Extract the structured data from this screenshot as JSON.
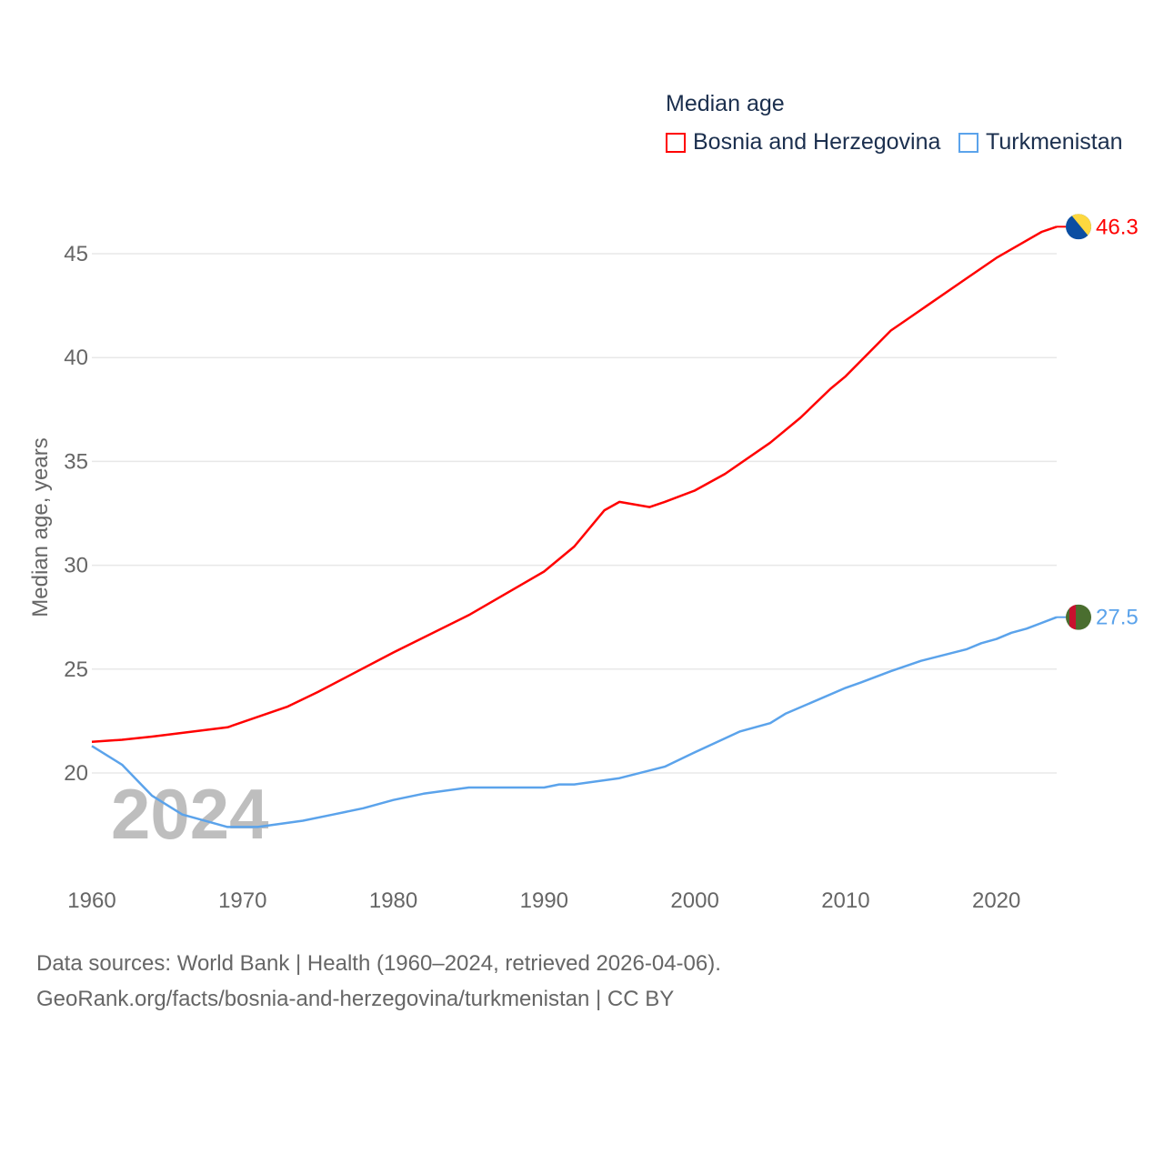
{
  "chart_data": {
    "type": "line",
    "title": "Median age",
    "xlabel": "",
    "ylabel": "Median age, years",
    "xlim": [
      1960,
      2024
    ],
    "ylim": [
      17,
      46.3
    ],
    "x_ticks": [
      "1960",
      "1970",
      "1980",
      "1990",
      "2000",
      "2010",
      "2020"
    ],
    "y_ticks": [
      "20",
      "25",
      "30",
      "35",
      "40",
      "45"
    ],
    "grid": true,
    "legend_placement": "top-right",
    "year_watermark": "2024",
    "series": [
      {
        "name": "Bosnia and Herzegovina",
        "color": "#ff0000",
        "end_label": "46.3",
        "flag": "bosnia-flag",
        "x": [
          1960,
          1962,
          1964,
          1969,
          1973,
          1975,
          1980,
          1985,
          1990,
          1992,
          1994,
          1995,
          1997,
          1998,
          2000,
          2002,
          2005,
          2007,
          2009,
          2010,
          2013,
          2014,
          2018,
          2020,
          2023,
          2024
        ],
        "y": [
          21.5,
          21.6,
          21.75,
          22.2,
          23.2,
          23.9,
          25.8,
          27.6,
          29.7,
          30.9,
          32.65,
          33.05,
          32.8,
          33.05,
          33.6,
          34.4,
          35.9,
          37.1,
          38.5,
          39.1,
          41.3,
          41.8,
          43.8,
          44.8,
          46.05,
          46.3
        ]
      },
      {
        "name": "Turkmenistan",
        "color": "#5ba3eb",
        "end_label": "27.5",
        "flag": "turkmenistan-flag",
        "x": [
          1960,
          1962,
          1964,
          1966,
          1968,
          1969,
          1971,
          1974,
          1976,
          1978,
          1980,
          1982,
          1985,
          1990,
          1991,
          1992,
          1995,
          1998,
          2000,
          2003,
          2005,
          2006,
          2010,
          2011,
          2013,
          2015,
          2018,
          2019,
          2020,
          2021,
          2022,
          2024
        ],
        "y": [
          21.3,
          20.4,
          18.9,
          18.0,
          17.6,
          17.4,
          17.4,
          17.7,
          18.0,
          18.3,
          18.7,
          19.0,
          19.3,
          19.3,
          19.45,
          19.45,
          19.75,
          20.3,
          21.0,
          22.0,
          22.4,
          22.85,
          24.1,
          24.35,
          24.9,
          25.4,
          25.95,
          26.25,
          26.45,
          26.75,
          26.95,
          27.5
        ]
      }
    ]
  },
  "footer": {
    "line1": "Data sources: World Bank | Health (1960–2024, retrieved 2026-04-06).",
    "line2": "GeoRank.org/facts/bosnia-and-herzegovina/turkmenistan | CC BY"
  }
}
